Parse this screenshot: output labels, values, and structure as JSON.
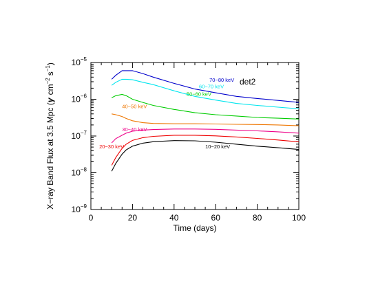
{
  "chart_data": {
    "type": "line",
    "title": "",
    "annotation": "det2",
    "xlabel": "Time (days)",
    "ylabel_main": "X−ray Band Flux at 3.5 Mpc (",
    "ylabel_gamma": "γ",
    "ylabel_units": "cm",
    "ylabel_cm_exp": "−2",
    "ylabel_s": "s",
    "ylabel_s_exp": "−1",
    "ylabel_close": ")",
    "xlim": [
      0,
      100
    ],
    "ylim_log10": [
      -9,
      -5
    ],
    "y_scale": "log",
    "x_ticks": [
      {
        "v": 0,
        "label": "0"
      },
      {
        "v": 20,
        "label": "20"
      },
      {
        "v": 40,
        "label": "40"
      },
      {
        "v": 60,
        "label": "60"
      },
      {
        "v": 80,
        "label": "80"
      },
      {
        "v": 100,
        "label": "100"
      }
    ],
    "y_ticks": [
      {
        "e": -9,
        "base": "10",
        "exp": "−9"
      },
      {
        "e": -8,
        "base": "10",
        "exp": "−8"
      },
      {
        "e": -7,
        "base": "10",
        "exp": "−7"
      },
      {
        "e": -6,
        "base": "10",
        "exp": "−6"
      },
      {
        "e": -5,
        "base": "10",
        "exp": "−5"
      }
    ],
    "series": [
      {
        "name": "70−80 keV",
        "color": "#0000cc",
        "label_at": [
          57,
          3e-06
        ],
        "x": [
          10,
          12,
          15,
          17,
          20,
          25,
          30,
          40,
          50,
          60,
          70,
          80,
          90,
          100
        ],
        "y": [
          3.5e-06,
          4.5e-06,
          6e-06,
          6e-06,
          6e-06,
          5e-06,
          4e-06,
          2.7e-06,
          1.9e-06,
          1.5e-06,
          1.2e-06,
          1.05e-06,
          9.3e-07,
          8.2e-07
        ]
      },
      {
        "name": "60−70 keV",
        "color": "#00e5ee",
        "label_at": [
          52,
          2e-06
        ],
        "x": [
          10,
          12,
          15,
          17,
          20,
          25,
          30,
          40,
          50,
          60,
          70,
          80,
          90,
          100
        ],
        "y": [
          2.4e-06,
          2.9e-06,
          3.5e-06,
          3.5e-06,
          3.4e-06,
          2.9e-06,
          2.5e-06,
          1.7e-06,
          1.2e-06,
          9.5e-07,
          7.7e-07,
          6.8e-07,
          6.1e-07,
          5.5e-07
        ]
      },
      {
        "name": "50−60 keV",
        "color": "#00cc00",
        "label_at": [
          46,
          1.25e-06
        ],
        "x": [
          10,
          12,
          15,
          17,
          20,
          25,
          30,
          40,
          50,
          60,
          70,
          80,
          90,
          100
        ],
        "y": [
          1.1e-06,
          1.25e-06,
          1.35e-06,
          1.25e-06,
          1e-06,
          8.2e-07,
          6.8e-07,
          5.3e-07,
          4.3e-07,
          3.8e-07,
          3.5e-07,
          3.2e-07,
          3.05e-07,
          2.9e-07
        ]
      },
      {
        "name": "40−50 keV",
        "color": "#ee7600",
        "label_at": [
          15,
          5.7e-07
        ],
        "x": [
          10,
          12,
          15,
          17,
          20,
          25,
          30,
          40,
          50,
          60,
          70,
          80,
          90,
          100
        ],
        "y": [
          4e-07,
          3.8e-07,
          3.4e-07,
          3e-07,
          2.6e-07,
          2.3e-07,
          2.2e-07,
          2.15e-07,
          2.15e-07,
          2.12e-07,
          2.08e-07,
          2.05e-07,
          2e-07,
          1.9e-07
        ]
      },
      {
        "name": "30−40 keV",
        "color": "#ee0088",
        "label_at": [
          15,
          1.35e-07
        ],
        "x": [
          10,
          12,
          15,
          17,
          20,
          25,
          30,
          40,
          50,
          60,
          70,
          80,
          90,
          100
        ],
        "y": [
          6.5e-08,
          8.5e-08,
          1.05e-07,
          1.2e-07,
          1.35e-07,
          1.45e-07,
          1.5e-07,
          1.55e-07,
          1.55e-07,
          1.52e-07,
          1.45e-07,
          1.38e-07,
          1.3e-07,
          1.2e-07
        ]
      },
      {
        "name": "20−30 keV",
        "color": "#ee0000",
        "label_at": [
          4,
          4.6e-08
        ],
        "x": [
          10,
          12,
          15,
          17,
          20,
          25,
          30,
          40,
          50,
          60,
          70,
          80,
          90,
          100
        ],
        "y": [
          1.6e-08,
          2.6e-08,
          4.6e-08,
          6e-08,
          7.6e-08,
          9e-08,
          9.8e-08,
          1.05e-07,
          1.05e-07,
          1.01e-07,
          9.4e-08,
          8.6e-08,
          7.8e-08,
          6.9e-08
        ]
      },
      {
        "name": "10−20 keV",
        "color": "#000000",
        "label_at": [
          55,
          4.6e-08
        ],
        "x": [
          10,
          12,
          15,
          17,
          20,
          25,
          30,
          40,
          50,
          60,
          70,
          80,
          90,
          100
        ],
        "y": [
          1.1e-08,
          1.8e-08,
          3.2e-08,
          4.2e-08,
          5.3e-08,
          6.4e-08,
          7e-08,
          7.5e-08,
          7.4e-08,
          6.8e-08,
          6e-08,
          5.3e-08,
          4.8e-08,
          4.3e-08
        ]
      }
    ]
  }
}
